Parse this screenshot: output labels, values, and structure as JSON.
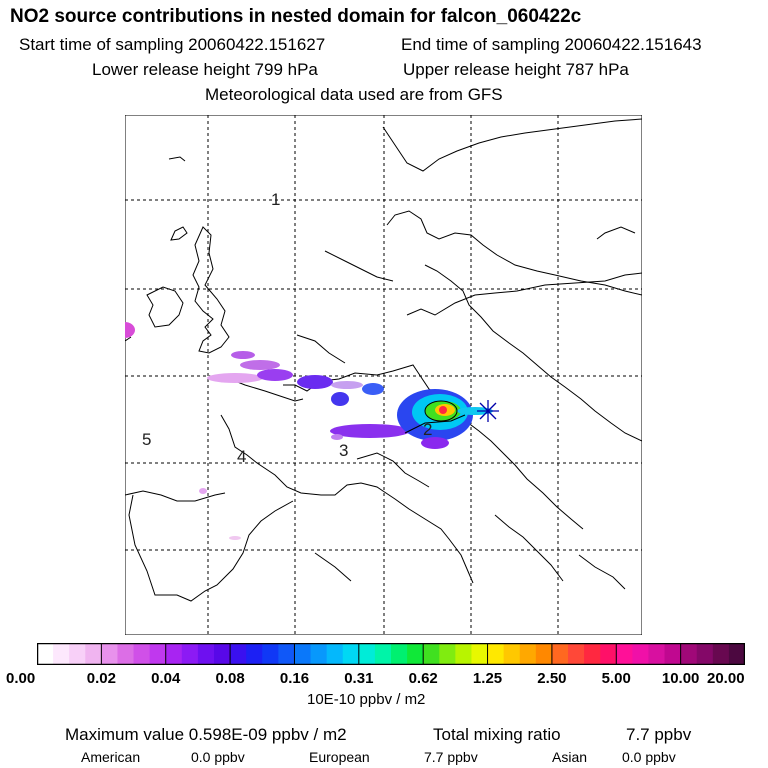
{
  "header": {
    "title": "NO2 source contributions in nested domain for falcon_060422c",
    "start_label": "Start time of sampling 20060422.151627",
    "end_label": "End time of sampling 20060422.151643",
    "lower_label": "Lower release height  799 hPa",
    "upper_label": "Upper release height  787 hPa",
    "met_label": "Meteorological data used are from GFS"
  },
  "map": {
    "region_labels": [
      "1",
      "2",
      "3",
      "4",
      "5"
    ]
  },
  "colorbar": {
    "ticks": [
      "0.00",
      "0.02",
      "0.04",
      "0.08",
      "0.16",
      "0.31",
      "0.62",
      "1.25",
      "2.50",
      "5.00",
      "10.00",
      "20.00"
    ],
    "units": "10E-10 ppbv / m2",
    "colors": [
      "#ffffff",
      "#fde8fd",
      "#f8d0f8",
      "#f0b4f0",
      "#e892ec",
      "#dc6ee6",
      "#d050e8",
      "#c038ee",
      "#a824f2",
      "#8c1af4",
      "#6e10f0",
      "#5808e8",
      "#3a10f0",
      "#1c20f4",
      "#1038f6",
      "#1058f8",
      "#0a78fa",
      "#0898fc",
      "#04b8fc",
      "#00d8f4",
      "#00ecd8",
      "#00f4a8",
      "#00f070",
      "#10e838",
      "#40e020",
      "#80ec10",
      "#b8f400",
      "#e8f800",
      "#ffe800",
      "#ffc800",
      "#ffa800",
      "#ff8800",
      "#ff6820",
      "#ff4838",
      "#ff2840",
      "#ff1068",
      "#ff1098",
      "#f010a8",
      "#d810a0",
      "#c00890",
      "#a00878",
      "#840868",
      "#680850",
      "#4c0840"
    ]
  },
  "summary": {
    "max_label": "Maximum value  0.598E-09 ppbv / m2",
    "total_label": "Total mixing ratio",
    "total_value": "7.7 ppbv",
    "american_label": "American",
    "american_value": "0.0 ppbv",
    "european_label": "European",
    "european_value": "7.7 ppbv",
    "asian_label": "Asian",
    "asian_value": "0.0 ppbv"
  }
}
